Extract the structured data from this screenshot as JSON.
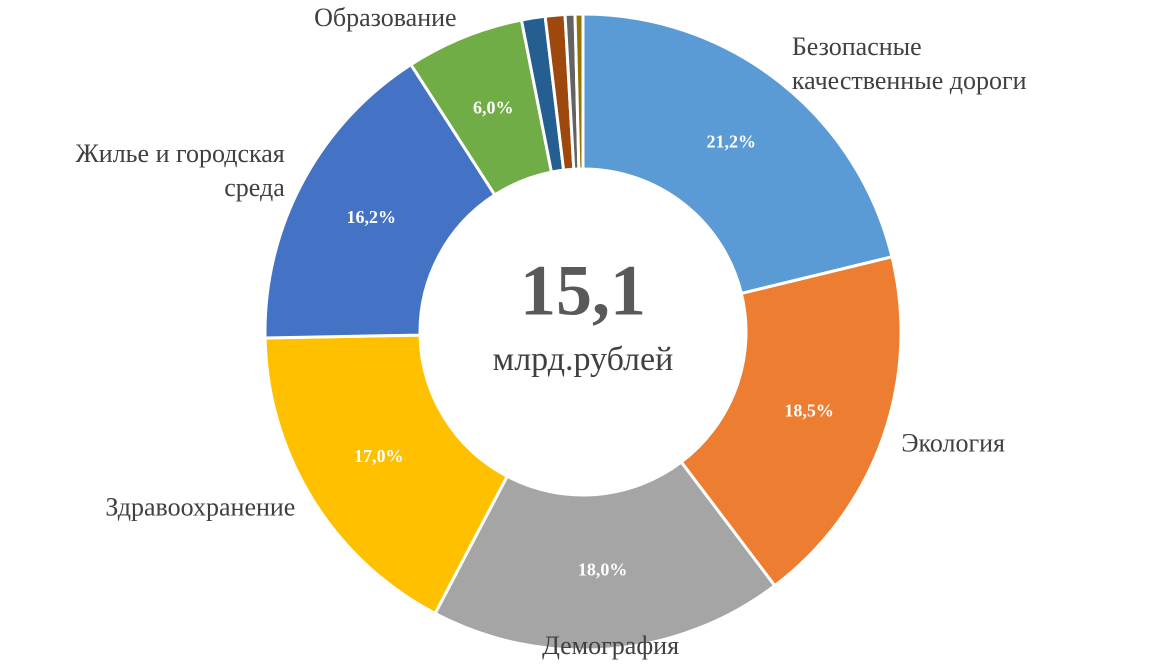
{
  "chart_data": {
    "type": "pie",
    "center_value": "15,1",
    "center_unit": "млрд.рублей",
    "categories": [
      [
        "Безопасные",
        "качественные дороги"
      ],
      [
        "Экология"
      ],
      [
        "Демография"
      ],
      [
        "Здравоохранение"
      ],
      [
        "Жилье и городская",
        "среда"
      ],
      [
        "Образование"
      ],
      null,
      null,
      null,
      null
    ],
    "values": [
      21.2,
      18.5,
      18.0,
      17.0,
      16.2,
      6.0,
      1.2,
      1.0,
      0.5,
      0.4
    ],
    "value_labels": [
      "21,2%",
      "18,5%",
      "18,0%",
      "17,0%",
      "16,2%",
      "6,0%",
      null,
      null,
      null,
      null
    ],
    "colors": [
      "#5b9bd5",
      "#ed7d31",
      "#a5a5a5",
      "#ffc000",
      "#4472c4",
      "#70ad47",
      "#255e91",
      "#9e480e",
      "#636363",
      "#997300"
    ]
  }
}
